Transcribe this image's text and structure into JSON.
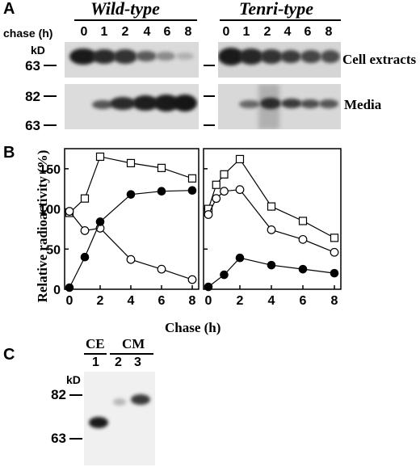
{
  "panelA": {
    "letter": "A",
    "wild_title": "Wild-type",
    "tenri_title": "Tenri-type",
    "chase_label": "chase (h)",
    "kd_label": "kD",
    "mw_63": "63",
    "mw_82": "82",
    "mw_63b": "63",
    "lanes": [
      "0",
      "1",
      "2",
      "4",
      "6",
      "8"
    ],
    "cell_extracts_label": "Cell extracts",
    "media_label": "Media"
  },
  "panelB": {
    "letter": "B",
    "ylabel": "Relative radioactivity (%)",
    "xlabel": "Chase (h)"
  },
  "panelC": {
    "letter": "C",
    "ce_label": "CE",
    "cm_label": "CM",
    "lanes": [
      "1",
      "2",
      "3"
    ],
    "kd_label": "kD",
    "mw_82": "82",
    "mw_63": "63"
  },
  "chart_data": [
    {
      "type": "line",
      "panel": "Wild-type",
      "xlabel": "Chase (h)",
      "ylabel": "Relative radioactivity (%)",
      "xlim": [
        0,
        8
      ],
      "ylim": [
        0,
        175
      ],
      "xticks": [
        "0",
        "2",
        "4",
        "6",
        "8"
      ],
      "yticks": [
        "0",
        "50",
        "100",
        "150"
      ],
      "series": [
        {
          "marker": "open-square",
          "x": [
            0,
            1,
            2,
            4,
            6,
            8
          ],
          "y": [
            95,
            113,
            165,
            157,
            151,
            138
          ]
        },
        {
          "marker": "open-circle",
          "x": [
            0,
            1,
            2,
            4,
            6,
            8
          ],
          "y": [
            97,
            73,
            76,
            37,
            25,
            12
          ]
        },
        {
          "marker": "filled-circle",
          "x": [
            0,
            1,
            2,
            4,
            6,
            8
          ],
          "y": [
            2,
            40,
            84,
            118,
            122,
            123
          ]
        }
      ]
    },
    {
      "type": "line",
      "panel": "Tenri-type",
      "xlabel": "Chase (h)",
      "xlim": [
        0,
        8
      ],
      "ylim": [
        0,
        175
      ],
      "xticks": [
        "0",
        "2",
        "4",
        "6",
        "8"
      ],
      "series": [
        {
          "marker": "open-square",
          "x": [
            0,
            0.5,
            1,
            2,
            4,
            6,
            8
          ],
          "y": [
            100,
            130,
            143,
            162,
            103,
            85,
            64
          ]
        },
        {
          "marker": "open-circle",
          "x": [
            0,
            0.5,
            1,
            2,
            4,
            6,
            8
          ],
          "y": [
            93,
            113,
            122,
            124,
            74,
            62,
            46
          ]
        },
        {
          "marker": "filled-circle",
          "x": [
            0,
            1,
            2,
            4,
            6,
            8
          ],
          "y": [
            3,
            18,
            39,
            30,
            25,
            20
          ]
        }
      ]
    }
  ]
}
